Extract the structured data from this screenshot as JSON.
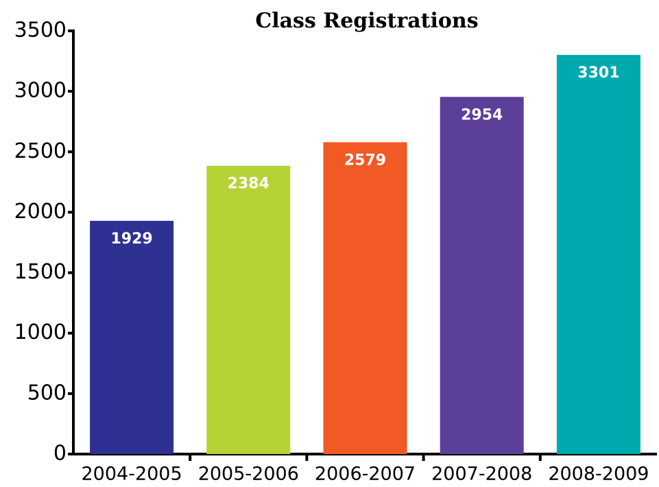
{
  "chart_data": {
    "type": "bar",
    "title": "Class Registrations",
    "categories": [
      "2004-2005",
      "2005-2006",
      "2006-2007",
      "2007-2008",
      "2008-2009"
    ],
    "values": [
      1929,
      2384,
      2579,
      2954,
      3301
    ],
    "colors": [
      "#2e3192",
      "#b5d334",
      "#f15a24",
      "#5b3f99",
      "#00a9ad"
    ],
    "ylim": [
      0,
      3500
    ],
    "yticks": [
      0,
      500,
      1000,
      1500,
      2000,
      2500,
      3000,
      3500
    ],
    "grid": false
  }
}
